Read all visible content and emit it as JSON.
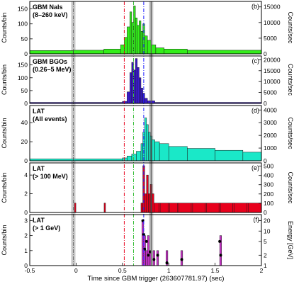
{
  "chart_data": {
    "type": "multi-panel histogram",
    "shared_x": {
      "xlabel": "Time since GBM trigger (263607781.97) (sec)",
      "xlim": [
        -0.5,
        2.0
      ],
      "ticks": [
        -0.5,
        0,
        0.5,
        1,
        1.5,
        2
      ],
      "tick_labels": [
        "-0.5",
        "0",
        "0.5",
        "1",
        "1.5",
        "2"
      ]
    },
    "markers": {
      "gray_bands": [
        -0.03,
        0.81
      ],
      "red_dashdot": 0.52,
      "green_dashdot": 0.62,
      "blue_dashdot": 0.73,
      "colors": {
        "red": "#e8001c",
        "green": "#3cbf3c",
        "blue": "#1a1aff",
        "gray": "#c8c8c8"
      }
    },
    "panels": [
      {
        "id": "b",
        "label_line1": "GBM NaIs",
        "label_line2": "(8–260 keV)",
        "tag": "(b)",
        "fill": "#33ee1a",
        "left_ylabel": "Counts/bin",
        "left_ticks": [
          "0",
          "50",
          "100",
          "150"
        ],
        "left_ylim": [
          0,
          175
        ],
        "right_ylabel": "Counts/sec",
        "right_ticks": [
          "0",
          "5000",
          "10000",
          "15000"
        ],
        "segments": [
          {
            "x0": -0.5,
            "x1": -0.03,
            "v": 11
          },
          {
            "x0": -0.03,
            "x1": 0.3,
            "v": 12
          },
          {
            "x0": 0.3,
            "x1": 0.48,
            "v": 16
          },
          {
            "x0": 0.48,
            "x1": 0.52,
            "v": 30
          },
          {
            "x0": 0.52,
            "x1": 0.55,
            "v": 55
          },
          {
            "x0": 0.55,
            "x1": 0.58,
            "v": 90
          },
          {
            "x0": 0.58,
            "x1": 0.6,
            "v": 140
          },
          {
            "x0": 0.6,
            "x1": 0.62,
            "v": 105
          },
          {
            "x0": 0.62,
            "x1": 0.64,
            "v": 160
          },
          {
            "x0": 0.64,
            "x1": 0.66,
            "v": 120
          },
          {
            "x0": 0.66,
            "x1": 0.68,
            "v": 95
          },
          {
            "x0": 0.68,
            "x1": 0.7,
            "v": 110
          },
          {
            "x0": 0.7,
            "x1": 0.72,
            "v": 75
          },
          {
            "x0": 0.72,
            "x1": 0.74,
            "v": 100
          },
          {
            "x0": 0.74,
            "x1": 0.77,
            "v": 60
          },
          {
            "x0": 0.77,
            "x1": 0.81,
            "v": 45
          },
          {
            "x0": 0.81,
            "x1": 0.86,
            "v": 30
          },
          {
            "x0": 0.86,
            "x1": 0.95,
            "v": 20
          },
          {
            "x0": 0.95,
            "x1": 1.2,
            "v": 16
          },
          {
            "x0": 1.2,
            "x1": 2.0,
            "v": 12
          }
        ]
      },
      {
        "id": "c",
        "label_line1": "GBM BGOs",
        "label_line2": "(0.26–5 MeV)",
        "tag": "(c)",
        "fill": "#3a1acc",
        "left_ylabel": "Counts/bin",
        "left_ticks": [
          "0",
          "50",
          "100",
          "150"
        ],
        "left_ylim": [
          0,
          185
        ],
        "right_ylabel": "Counts/sec",
        "right_ticks": [
          "0",
          "5000",
          "10000",
          "15000",
          "20000"
        ],
        "segments": [
          {
            "x0": -0.5,
            "x1": 0.5,
            "v": 4
          },
          {
            "x0": 0.5,
            "x1": 0.55,
            "v": 8
          },
          {
            "x0": 0.55,
            "x1": 0.58,
            "v": 45
          },
          {
            "x0": 0.58,
            "x1": 0.6,
            "v": 120
          },
          {
            "x0": 0.6,
            "x1": 0.62,
            "v": 160
          },
          {
            "x0": 0.62,
            "x1": 0.64,
            "v": 130
          },
          {
            "x0": 0.64,
            "x1": 0.66,
            "v": 175
          },
          {
            "x0": 0.66,
            "x1": 0.68,
            "v": 140
          },
          {
            "x0": 0.68,
            "x1": 0.7,
            "v": 100
          },
          {
            "x0": 0.7,
            "x1": 0.72,
            "v": 60
          },
          {
            "x0": 0.72,
            "x1": 0.74,
            "v": 40
          },
          {
            "x0": 0.74,
            "x1": 0.77,
            "v": 20
          },
          {
            "x0": 0.77,
            "x1": 0.85,
            "v": 10
          },
          {
            "x0": 0.85,
            "x1": 2.0,
            "v": 4
          }
        ]
      },
      {
        "id": "d",
        "label_line1": "LAT",
        "label_line2": "(All events)",
        "tag": "(d)",
        "fill": "#1ae8c8",
        "left_ylabel": "Counts/bin",
        "left_ticks": [
          "0",
          "20",
          "40"
        ],
        "left_ylim": [
          0,
          58
        ],
        "right_ylabel": "Counts/sec",
        "right_ticks": [
          "0",
          "1000",
          "2000",
          "3000",
          "4000"
        ],
        "segments": [
          {
            "x0": -0.5,
            "x1": 0.5,
            "v": 2
          },
          {
            "x0": 0.5,
            "x1": 0.55,
            "v": 3
          },
          {
            "x0": 0.55,
            "x1": 0.6,
            "v": 5
          },
          {
            "x0": 0.6,
            "x1": 0.65,
            "v": 7
          },
          {
            "x0": 0.65,
            "x1": 0.7,
            "v": 10
          },
          {
            "x0": 0.7,
            "x1": 0.72,
            "v": 18
          },
          {
            "x0": 0.72,
            "x1": 0.74,
            "v": 30
          },
          {
            "x0": 0.74,
            "x1": 0.76,
            "v": 45
          },
          {
            "x0": 0.76,
            "x1": 0.78,
            "v": 38
          },
          {
            "x0": 0.78,
            "x1": 0.8,
            "v": 30
          },
          {
            "x0": 0.8,
            "x1": 0.82,
            "v": 26
          },
          {
            "x0": 0.82,
            "x1": 0.85,
            "v": 22
          },
          {
            "x0": 0.85,
            "x1": 0.9,
            "v": 20
          },
          {
            "x0": 0.9,
            "x1": 1.0,
            "v": 18
          },
          {
            "x0": 1.0,
            "x1": 1.2,
            "v": 15
          },
          {
            "x0": 1.2,
            "x1": 1.5,
            "v": 13
          },
          {
            "x0": 1.5,
            "x1": 1.8,
            "v": 11
          },
          {
            "x0": 1.8,
            "x1": 2.0,
            "v": 9
          }
        ]
      },
      {
        "id": "e",
        "label_line1": "LAT",
        "label_line2": "(> 100 MeV)",
        "tag": "(e)",
        "fill": "#e8001c",
        "left_ylabel": "Counts/bin",
        "left_ticks": [
          "0",
          "2",
          "4"
        ],
        "left_ylim": [
          0,
          5.3
        ],
        "right_ylabel": "Counts/sec",
        "right_ticks": [
          "0",
          "100",
          "200",
          "300",
          "400",
          "500"
        ],
        "segments": [
          {
            "x0": -0.5,
            "x1": 0.7,
            "v": 0
          },
          {
            "x0": 0.7,
            "x1": 0.72,
            "v": 1
          },
          {
            "x0": 0.72,
            "x1": 0.74,
            "v": 5
          },
          {
            "x0": 0.74,
            "x1": 0.76,
            "v": 2
          },
          {
            "x0": 0.76,
            "x1": 0.78,
            "v": 4
          },
          {
            "x0": 0.78,
            "x1": 0.8,
            "v": 2
          },
          {
            "x0": 0.8,
            "x1": 0.82,
            "v": 3
          },
          {
            "x0": 0.82,
            "x1": 0.84,
            "v": 2
          },
          {
            "x0": 0.84,
            "x1": 2.0,
            "v": 1
          }
        ],
        "spikes": [
          -0.01,
          0.31,
          0.9,
          1.0,
          1.1,
          1.25,
          1.4,
          1.55,
          1.7,
          1.85
        ]
      },
      {
        "id": "f",
        "label_line1": "LAT",
        "label_line2": "(> 1 GeV)",
        "tag": "(f)",
        "fill": "#cc33cc",
        "left_ylabel": "Counts/bin",
        "left_ticks": [
          "0",
          "1",
          "2",
          "3"
        ],
        "left_ylim": [
          0,
          3.4
        ],
        "right_ylabel": "Energy [GeV]",
        "right_ticks": [
          "1",
          "2",
          "5",
          "10",
          "20"
        ],
        "segments": [
          {
            "x0": -0.5,
            "x1": 0.71,
            "v": 0
          },
          {
            "x0": 0.71,
            "x1": 0.73,
            "v": 3
          },
          {
            "x0": 0.73,
            "x1": 0.75,
            "v": 2
          },
          {
            "x0": 0.75,
            "x1": 0.77,
            "v": 1
          },
          {
            "x0": 0.77,
            "x1": 0.79,
            "v": 2
          },
          {
            "x0": 0.79,
            "x1": 0.81,
            "v": 1
          },
          {
            "x0": 0.81,
            "x1": 0.83,
            "v": 0
          },
          {
            "x0": 0.83,
            "x1": 0.85,
            "v": 1
          },
          {
            "x0": 0.85,
            "x1": 0.87,
            "v": 0
          },
          {
            "x0": 0.87,
            "x1": 0.89,
            "v": 1
          },
          {
            "x0": 0.89,
            "x1": 0.97,
            "v": 0
          },
          {
            "x0": 0.97,
            "x1": 0.99,
            "v": 1
          },
          {
            "x0": 0.99,
            "x1": 1.13,
            "v": 0
          },
          {
            "x0": 1.13,
            "x1": 1.15,
            "v": 1
          },
          {
            "x0": 1.15,
            "x1": 1.55,
            "v": 0
          },
          {
            "x0": 1.55,
            "x1": 1.57,
            "v": 2
          },
          {
            "x0": 1.57,
            "x1": 2.0,
            "v": 0
          }
        ],
        "points": [
          {
            "t": 0.72,
            "e": 20
          },
          {
            "t": 0.73,
            "e": 8
          },
          {
            "t": 0.74,
            "e": 3
          },
          {
            "t": 0.76,
            "e": 5
          },
          {
            "t": 0.78,
            "e": 2
          },
          {
            "t": 0.8,
            "e": 2.5
          },
          {
            "t": 0.84,
            "e": 1.5
          },
          {
            "t": 0.88,
            "e": 2
          },
          {
            "t": 0.98,
            "e": 1.2
          },
          {
            "t": 1.14,
            "e": 1.5
          },
          {
            "t": 1.55,
            "e": 5
          },
          {
            "t": 1.56,
            "e": 2
          }
        ]
      }
    ]
  }
}
